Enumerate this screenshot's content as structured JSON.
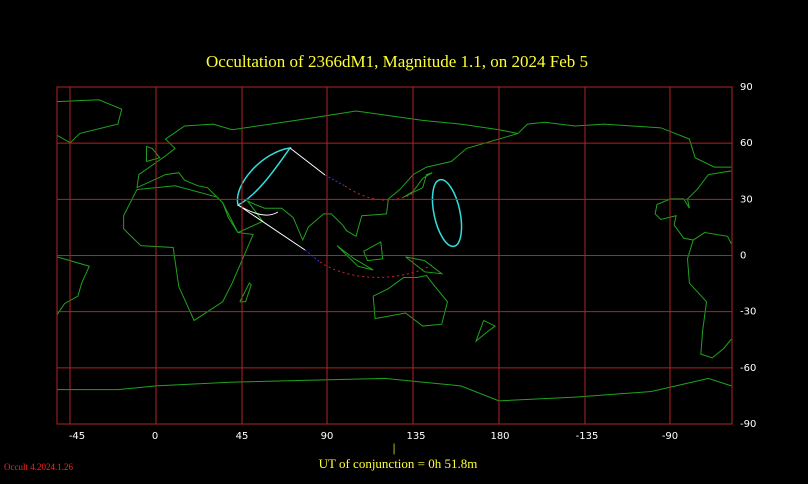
{
  "header": {
    "title": "Occultation  of  2366dM1,      Magnitude 1.1,   on  2024 Feb  5"
  },
  "map": {
    "longitude_labels": [
      "-45",
      "0",
      "45",
      "90",
      "135",
      "180",
      "-135",
      "-90"
    ],
    "latitude_labels": [
      "90",
      "60",
      "30",
      "0",
      "-30",
      "-60",
      "-90"
    ]
  },
  "footer": {
    "conjunction_marker": "|",
    "conjunction": "UT of conjunction =  0h 51.8m",
    "version": "Occult 4.2024.1.26"
  }
}
